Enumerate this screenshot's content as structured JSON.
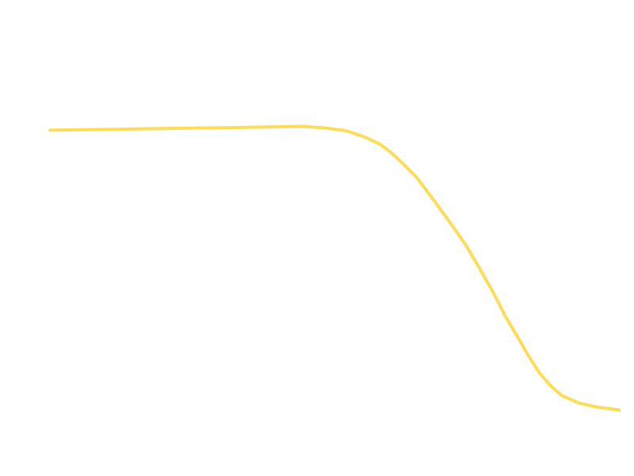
{
  "chart_data": {
    "type": "line",
    "title": "",
    "xlabel": "",
    "ylabel": "",
    "grid": false,
    "legend": "none",
    "colors": {
      "background": "#ffffff",
      "line": "#fddc58"
    },
    "xlim": [
      0,
      1
    ],
    "ylim": [
      0,
      1
    ],
    "series": [
      {
        "x": [
          0.0,
          0.05,
          0.1,
          0.2,
          0.3,
          0.4,
          0.44,
          0.48,
          0.52,
          0.55,
          0.58,
          0.6,
          0.62,
          0.645,
          0.67,
          0.7,
          0.73,
          0.755,
          0.78,
          0.8,
          0.82,
          0.84,
          0.86,
          0.88,
          0.9,
          0.93,
          0.96,
          1.0
        ],
        "y": [
          0.79,
          0.791,
          0.792,
          0.794,
          0.796,
          0.798,
          0.799,
          0.796,
          0.789,
          0.776,
          0.758,
          0.738,
          0.713,
          0.68,
          0.636,
          0.582,
          0.526,
          0.47,
          0.412,
          0.36,
          0.315,
          0.27,
          0.228,
          0.198,
          0.175,
          0.158,
          0.149,
          0.142
        ]
      }
    ]
  }
}
